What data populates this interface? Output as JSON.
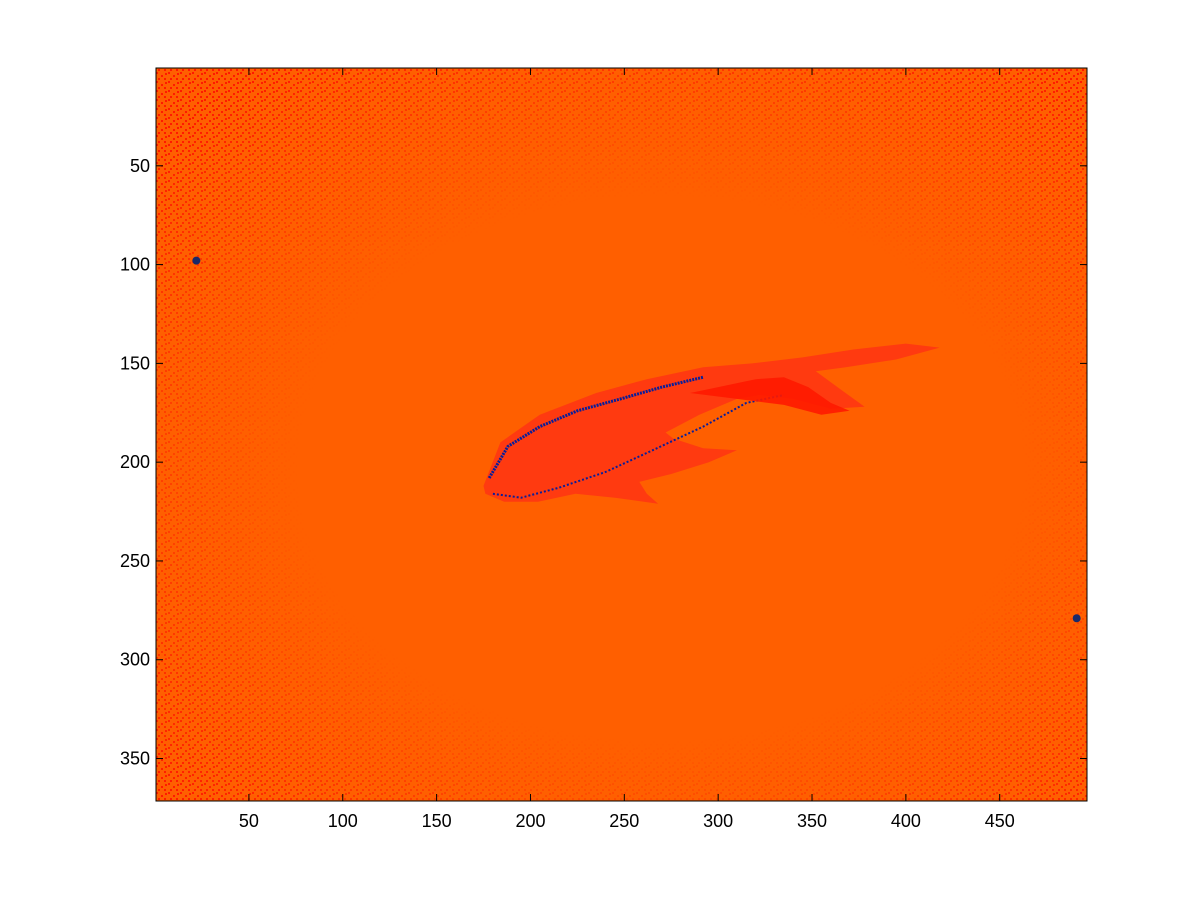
{
  "figure": {
    "background": "#ffffff"
  },
  "chart_data": {
    "type": "heatmap",
    "title": "",
    "xlabel": "",
    "ylabel": "",
    "xlim": [
      0.5,
      496.5
    ],
    "ylim": [
      0.5,
      371.5
    ],
    "y_reversed": true,
    "x_ticks": [
      50,
      100,
      150,
      200,
      250,
      300,
      350,
      400,
      450
    ],
    "y_ticks": [
      50,
      100,
      150,
      200,
      250,
      300,
      350
    ],
    "grid": false,
    "colormap": {
      "background": "#ff5f00",
      "speckle": "#ff1a00",
      "fish_body": "#ff3a10",
      "fish_edge": "#0a1e9a",
      "dark_spot": "#1a2a6a"
    },
    "features": {
      "fish_outline": [
        [
          175,
          212
        ],
        [
          184,
          190
        ],
        [
          205,
          176
        ],
        [
          235,
          165
        ],
        [
          262,
          158
        ],
        [
          292,
          152
        ],
        [
          318,
          150
        ],
        [
          345,
          147
        ],
        [
          372,
          143
        ],
        [
          400,
          140
        ],
        [
          418,
          142
        ],
        [
          395,
          148
        ],
        [
          368,
          152
        ],
        [
          352,
          154
        ],
        [
          365,
          163
        ],
        [
          378,
          172
        ],
        [
          360,
          173
        ],
        [
          340,
          168
        ],
        [
          322,
          166
        ],
        [
          310,
          168
        ],
        [
          300,
          172
        ],
        [
          290,
          176
        ],
        [
          272,
          185
        ],
        [
          276,
          188
        ],
        [
          292,
          193
        ],
        [
          310,
          194
        ],
        [
          295,
          200
        ],
        [
          275,
          206
        ],
        [
          258,
          210
        ],
        [
          262,
          216
        ],
        [
          268,
          221
        ],
        [
          245,
          218
        ],
        [
          224,
          216
        ],
        [
          204,
          220
        ],
        [
          186,
          220
        ],
        [
          176,
          216
        ]
      ],
      "fish_edge_upper": [
        [
          178,
          208
        ],
        [
          188,
          192
        ],
        [
          205,
          182
        ],
        [
          225,
          174
        ],
        [
          248,
          168
        ],
        [
          270,
          162
        ],
        [
          292,
          157
        ]
      ],
      "fish_edge_lower": [
        [
          180,
          216
        ],
        [
          195,
          218
        ],
        [
          215,
          213
        ],
        [
          240,
          205
        ],
        [
          265,
          194
        ],
        [
          292,
          182
        ],
        [
          315,
          170
        ],
        [
          335,
          166
        ]
      ],
      "fish_fin": [
        [
          285,
          165
        ],
        [
          300,
          162
        ],
        [
          320,
          158
        ],
        [
          335,
          157
        ],
        [
          348,
          162
        ],
        [
          360,
          170
        ],
        [
          370,
          174
        ],
        [
          355,
          176
        ],
        [
          335,
          171
        ],
        [
          310,
          168
        ]
      ],
      "dark_spots": [
        [
          22,
          98
        ],
        [
          491,
          279
        ]
      ]
    }
  }
}
